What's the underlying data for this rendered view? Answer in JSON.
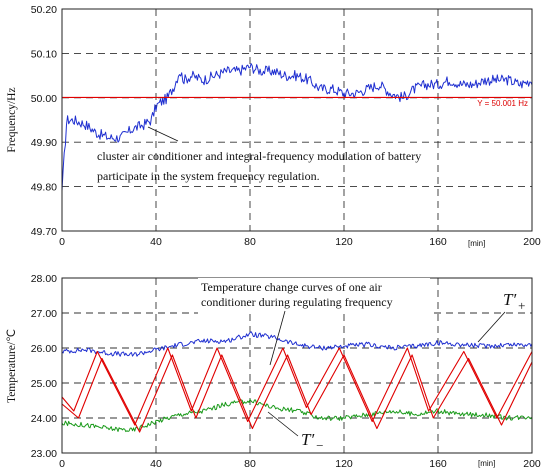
{
  "chart_data": [
    {
      "type": "line",
      "ylabel": "Frequency/Hz",
      "xlim": [
        0,
        200
      ],
      "ylim": [
        49.7,
        50.2
      ],
      "x_ticks": [
        0,
        40,
        80,
        120,
        160,
        200
      ],
      "x_tick_labels": [
        "0",
        "40",
        "80",
        "120",
        "160",
        "200"
      ],
      "x_unit_label": "[min]",
      "y_ticks": [
        49.7,
        49.8,
        49.9,
        50.0,
        50.1,
        50.2
      ],
      "y_tick_labels": [
        "49.70",
        "49.80",
        "49.90",
        "50.00",
        "50.10",
        "50.20"
      ],
      "grid": true,
      "series": [
        {
          "color": "#1f2fd0",
          "x": [
            0,
            2,
            5,
            10,
            15,
            20,
            25,
            30,
            35,
            38,
            40,
            42,
            45,
            48,
            50,
            52,
            55,
            60,
            65,
            70,
            75,
            80,
            85,
            90,
            95,
            100,
            105,
            110,
            115,
            120,
            125,
            130,
            135,
            140,
            145,
            150,
            155,
            160,
            165,
            170,
            175,
            180,
            185,
            190,
            195,
            200
          ],
          "y": [
            49.79,
            49.95,
            49.95,
            49.94,
            49.92,
            49.91,
            49.91,
            49.93,
            49.94,
            49.95,
            49.98,
            49.99,
            50.0,
            50.03,
            50.06,
            50.04,
            50.05,
            50.04,
            50.05,
            50.06,
            50.06,
            50.07,
            50.06,
            50.06,
            50.05,
            50.05,
            50.04,
            50.02,
            50.02,
            50.01,
            50.01,
            50.02,
            50.03,
            50.01,
            50.0,
            50.02,
            50.03,
            50.03,
            50.04,
            50.03,
            50.03,
            50.04,
            50.04,
            50.04,
            50.03,
            50.04
          ]
        },
        {
          "color": "#e00000",
          "x": [
            0,
            200
          ],
          "y": [
            50.001,
            50.001
          ]
        }
      ],
      "annotations": [
        {
          "text": "Y = 50.001 Hz",
          "x": 200,
          "y": 50.001,
          "color": "#e00000"
        },
        {
          "text_lines": [
            "cluster air conditioner and integral-frequency modulation of battery",
            "participate in the system frequency regulation."
          ],
          "points_to": [
            48,
            49.97
          ]
        }
      ]
    },
    {
      "type": "line",
      "ylabel": "Temperature/℃",
      "xlim": [
        0,
        200
      ],
      "ylim": [
        23.0,
        28.0
      ],
      "x_ticks": [
        0,
        40,
        80,
        120,
        160,
        200
      ],
      "x_tick_labels": [
        "0",
        "40",
        "80",
        "120",
        "160",
        "200"
      ],
      "x_unit_label": "[min]",
      "y_ticks": [
        23.0,
        24.0,
        25.0,
        26.0,
        27.0,
        28.0
      ],
      "y_tick_labels": [
        "23.00",
        "24.00",
        "25.00",
        "26.00",
        "27.00",
        "28.00"
      ],
      "grid": true,
      "series": [
        {
          "color": "#1f2fd0",
          "x": [
            0,
            10,
            20,
            30,
            40,
            50,
            60,
            70,
            80,
            90,
            100,
            110,
            120,
            130,
            140,
            150,
            160,
            170,
            180,
            190,
            200
          ],
          "y": [
            25.9,
            25.95,
            25.85,
            25.8,
            25.95,
            26.1,
            26.2,
            26.2,
            26.4,
            26.3,
            26.1,
            26.0,
            26.05,
            26.1,
            26.0,
            26.05,
            26.15,
            26.1,
            26.05,
            26.1,
            26.1
          ]
        },
        {
          "color": "#1a9a1a",
          "x": [
            0,
            10,
            20,
            30,
            40,
            50,
            60,
            70,
            80,
            90,
            100,
            110,
            120,
            130,
            140,
            150,
            160,
            170,
            180,
            190,
            200
          ],
          "y": [
            23.85,
            23.8,
            23.7,
            23.65,
            23.9,
            24.1,
            24.2,
            24.4,
            24.5,
            24.3,
            24.2,
            24.0,
            24.0,
            24.1,
            24.2,
            24.1,
            24.2,
            24.1,
            24.1,
            24.0,
            24.05
          ]
        },
        {
          "color": "#e00000",
          "x": [
            0,
            5,
            15,
            31,
            45,
            55,
            66,
            79,
            94,
            104,
            118,
            132,
            147,
            156,
            171,
            185,
            200
          ],
          "y": [
            24.6,
            24.2,
            25.9,
            23.8,
            26.0,
            24.2,
            26.0,
            23.9,
            26.0,
            24.3,
            26.0,
            23.9,
            26.0,
            24.2,
            25.9,
            24.0,
            25.9
          ]
        },
        {
          "color": "#e00000",
          "x": [
            0,
            7,
            17,
            33,
            47,
            57,
            68,
            81,
            96,
            106,
            120,
            134,
            149,
            158,
            173,
            187,
            200
          ],
          "y": [
            24.4,
            24.0,
            25.7,
            23.6,
            25.8,
            24.0,
            25.8,
            23.7,
            25.8,
            24.1,
            25.8,
            23.7,
            25.8,
            24.0,
            25.7,
            23.8,
            25.6
          ]
        }
      ],
      "annotations": [
        {
          "text_lines": [
            "Temperature change curves of one air",
            "conditioner during regulating frequency"
          ],
          "points_to": [
            103,
            25.4
          ]
        },
        {
          "label": "T′+",
          "base": "T′",
          "subscript": "+",
          "points_to": [
            176,
            26.1
          ]
        },
        {
          "label": "T′−",
          "base": "T′",
          "subscript": "−",
          "points_to": [
            85,
            24.4
          ]
        }
      ]
    }
  ]
}
